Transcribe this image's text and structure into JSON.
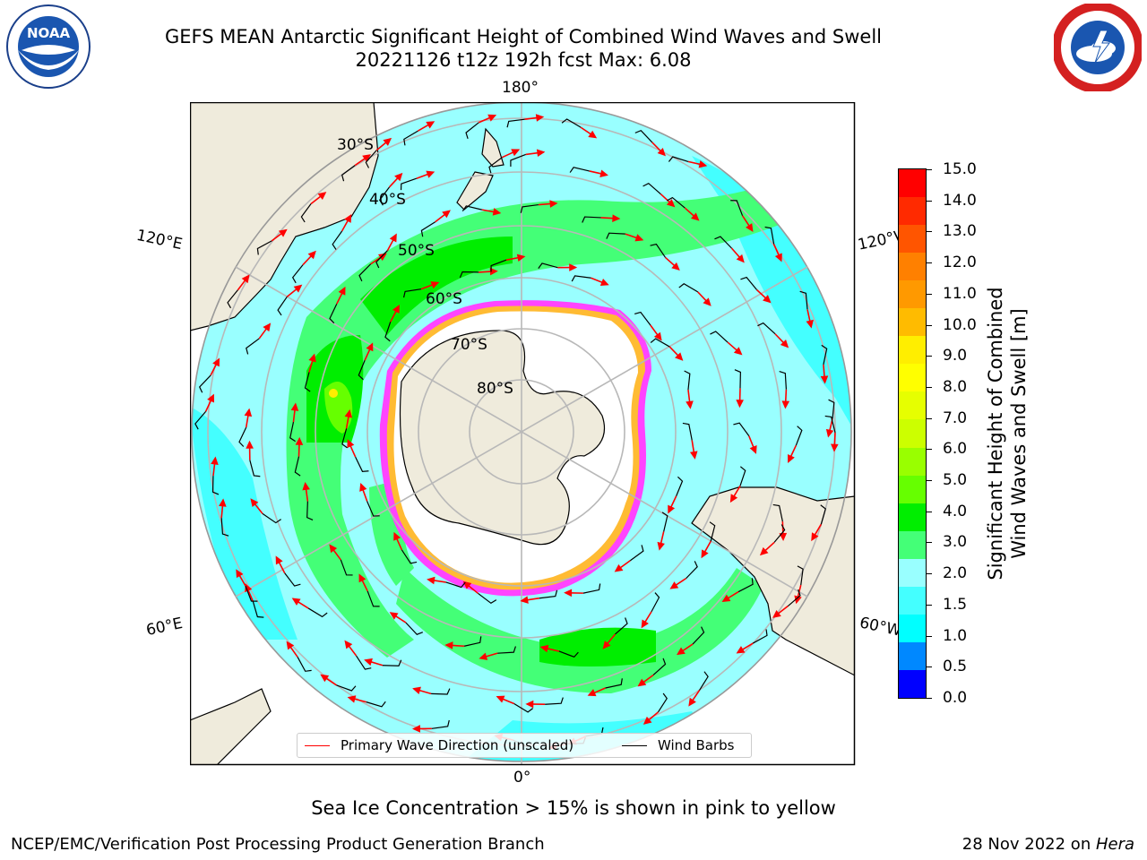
{
  "header": {
    "title_line1": "GEFS MEAN Antarctic Significant Height of Combined Wind Waves and Swell",
    "title_line2": "20221126 t12z 192h fcst   Max: 6.08"
  },
  "logos": {
    "left": "noaa-logo",
    "left_text": "NOAA",
    "right": "nws-logo"
  },
  "map": {
    "projection": "south-polar-stereographic",
    "longitude_labels": [
      "180°",
      "120°E",
      "120°W",
      "60°E",
      "60°W",
      "0°"
    ],
    "latitude_labels": [
      "30°S",
      "40°S",
      "50°S",
      "60°S",
      "70°S",
      "80°S"
    ],
    "colors": {
      "land": "#efebdc",
      "ocean_outside": "#ffffff",
      "grid": "#b8b8b8",
      "coast": "#000000",
      "ice": "#ffffff",
      "ice_edge_pink": "#ff44ff",
      "ice_edge_yellow": "#ffbb33",
      "wave_arrow": "#ff0000",
      "wind_barb": "#000000"
    }
  },
  "colorbar": {
    "ticks": [
      "15.0",
      "14.0",
      "13.0",
      "12.0",
      "11.0",
      "10.0",
      "9.0",
      "8.0",
      "7.0",
      "6.0",
      "5.0",
      "4.0",
      "3.0",
      "2.0",
      "1.5",
      "1.0",
      "0.5",
      "0.0"
    ],
    "colors_top_to_bottom": [
      "#ff0000",
      "#ff2a00",
      "#ff5500",
      "#ff8000",
      "#ff9900",
      "#ffbb00",
      "#ffee00",
      "#ffff00",
      "#e6ff00",
      "#ccff00",
      "#99ff00",
      "#66ff00",
      "#00ee00",
      "#44ff77",
      "#99ffff",
      "#44ffff",
      "#00ffff",
      "#0088ff",
      "#0000ff"
    ],
    "title_line1": "Significant Height of Combined",
    "title_line2": "Wind Waves and Swell [m]"
  },
  "legend": {
    "primary_wave": "Primary Wave Direction (unscaled)",
    "wind_barbs": "Wind Barbs"
  },
  "note": "Sea Ice Concentration > 15% is shown in pink to yellow",
  "footer": {
    "left": "NCEP/EMC/Verification Post Processing Product Generation Branch",
    "right_text": "28 Nov 2022 on ",
    "right_italic": "Hera"
  }
}
